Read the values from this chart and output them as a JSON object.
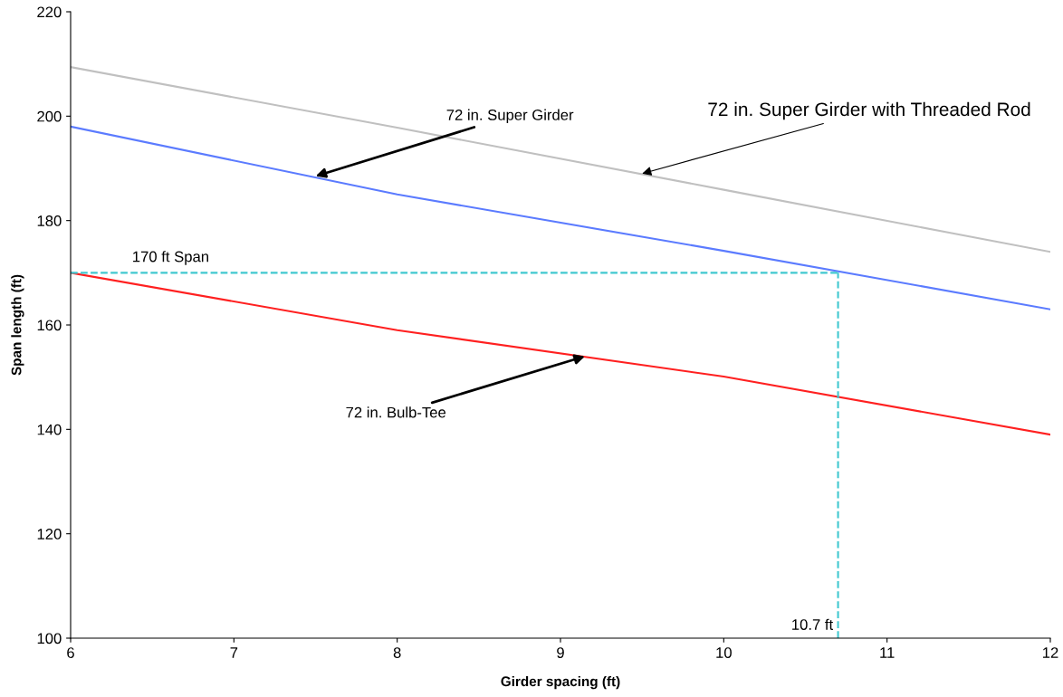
{
  "chart_data": {
    "type": "line",
    "xlabel": "Girder spacing (ft)",
    "ylabel": "Span length (ft)",
    "x": [
      6,
      8,
      10,
      12
    ],
    "series": [
      {
        "color": "#c0c0c0",
        "values": [
          209.4,
          197.8,
          185.9,
          174
        ]
      },
      {
        "color": "#5b7bff",
        "values": [
          198,
          185,
          174.2,
          163
        ]
      },
      {
        "color": "#ff2020",
        "values": [
          170,
          159,
          150.1,
          139
        ]
      }
    ],
    "xlim": [
      6,
      12
    ],
    "ylim": [
      100,
      220
    ],
    "xticks": [
      6,
      7,
      8,
      9,
      10,
      11,
      12
    ],
    "yticks": [
      100,
      120,
      140,
      160,
      180,
      200,
      220
    ],
    "grid": false,
    "legend": false,
    "marker": "none",
    "line_style": "solid",
    "ref_lines": [
      {
        "axis": "y",
        "value": 170,
        "label": "170 ft Span",
        "color": "#40c8d0",
        "line_style": "dashed"
      },
      {
        "axis": "x",
        "value": 10.7,
        "label": "10.7 ft",
        "color": "#40c8d0",
        "line_style": "dashed"
      }
    ],
    "annotations": [
      {
        "text": "72 in. Super Girder",
        "x": 7.5,
        "y": 188.5
      },
      {
        "text": "72 in. Super Girder with Threaded Rod",
        "x": 9.5,
        "y": 189
      },
      {
        "text": "72 in. Bulb-Tee",
        "x": 9.15,
        "y": 154
      }
    ]
  }
}
